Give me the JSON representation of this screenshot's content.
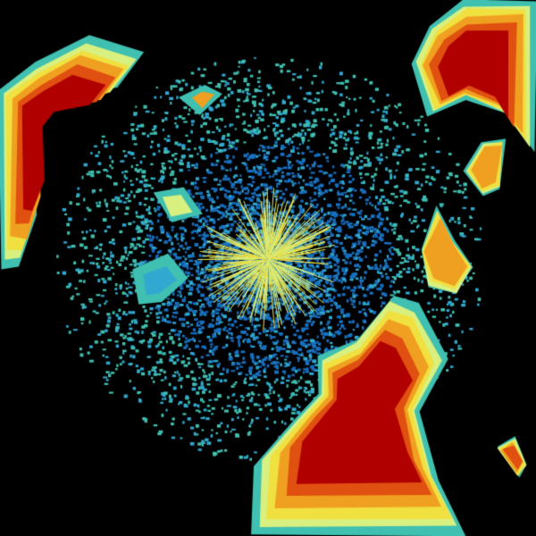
{
  "image": {
    "kind": "weather-radar-reflectivity",
    "background": "#000000",
    "palette": {
      "light": "#40c0b0",
      "blue": "#1870c0",
      "cyan": "#30a8d0",
      "green_yellow": "#d8f080",
      "yellow": "#f0e040",
      "orange": "#f0a020",
      "red_orange": "#e05010",
      "red": "#b00000"
    }
  }
}
